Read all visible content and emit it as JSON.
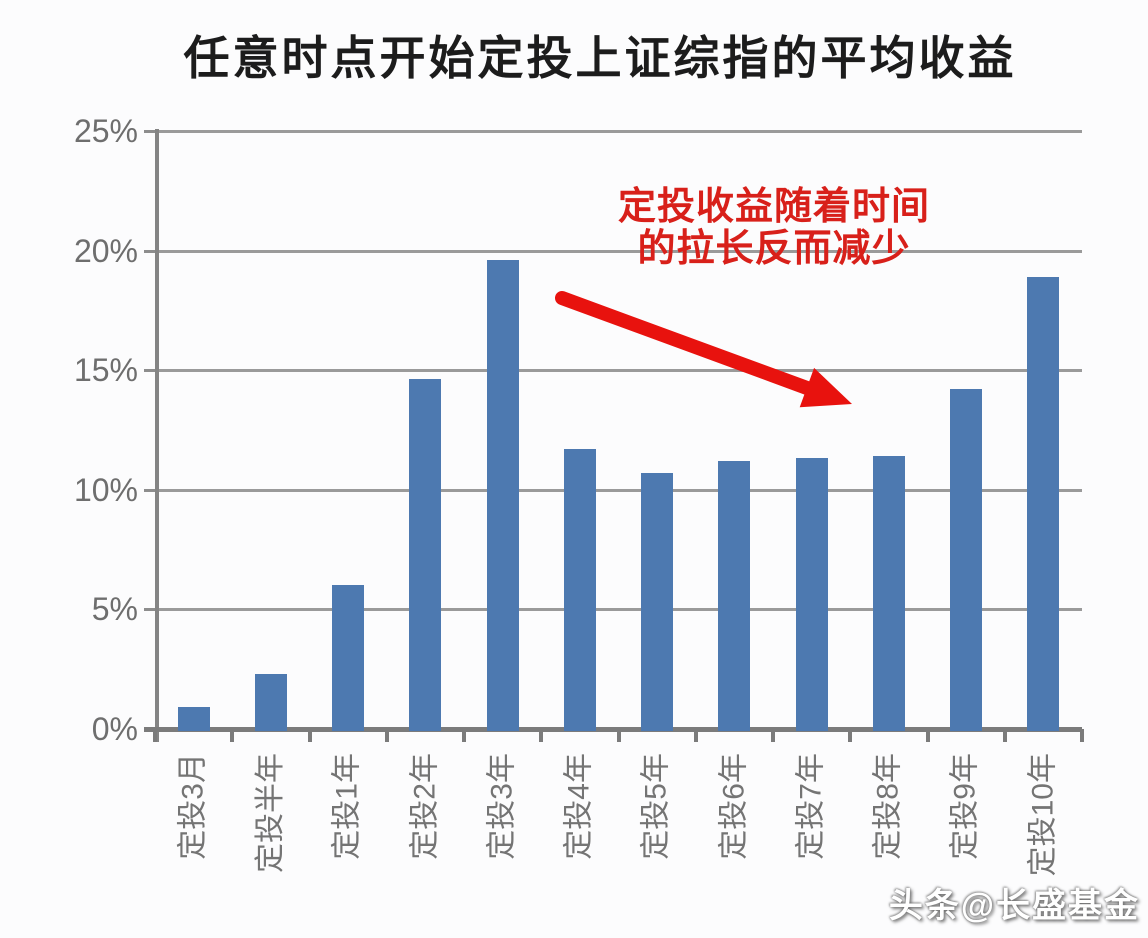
{
  "chart_data": {
    "type": "bar",
    "title": "任意时点开始定投上证综指的平均收益",
    "categories": [
      "定投3月",
      "定投半年",
      "定投1年",
      "定投2年",
      "定投3年",
      "定投4年",
      "定投5年",
      "定投6年",
      "定投7年",
      "定投8年",
      "定投9年",
      "定投10年"
    ],
    "values": [
      1.0,
      2.4,
      6.1,
      14.7,
      19.7,
      11.8,
      10.8,
      11.3,
      11.4,
      11.5,
      14.3,
      19.0
    ],
    "unit": "%",
    "xlabel": "",
    "ylabel": "",
    "ylim": [
      0,
      25
    ],
    "yticks": [
      0,
      5,
      10,
      15,
      20,
      25
    ],
    "ytick_labels": [
      "0%",
      "5%",
      "10%",
      "15%",
      "20%",
      "25%"
    ],
    "grid": true,
    "legend": "none",
    "bar_color": "#4d79b0",
    "annotation": {
      "lines": [
        "定投收益随着时间",
        "的拉长反而减少"
      ],
      "color": "#d8201a",
      "arrow_color": "#e8120e"
    },
    "watermark": "头条@长盛基金"
  },
  "colors": {
    "background": "#fcfcfd",
    "title_text": "#1c1c1c",
    "axis": "#7b7b7b",
    "gridline": "#9a9a9a",
    "tick_label": "#6e6e6e"
  }
}
